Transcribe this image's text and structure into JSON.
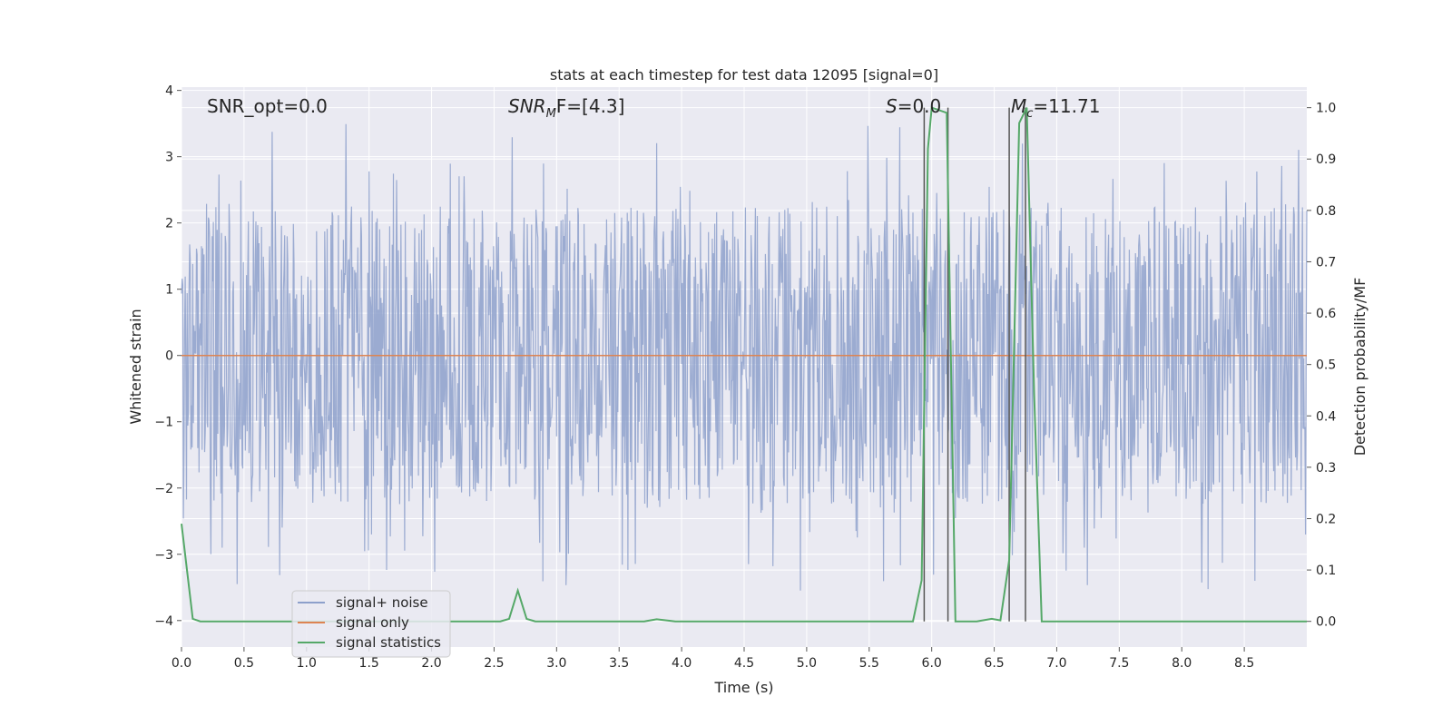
{
  "chart_data": {
    "type": "line",
    "title": "stats at each timestep for test data 12095 [signal=0]",
    "xlabel": "Time (s)",
    "ylabel": "Whitened strain",
    "ylabel_right": "Detection probability/MF",
    "xlim": [
      0,
      9
    ],
    "ylim": [
      -4.4,
      4.05
    ],
    "ylim_right": [
      -0.05,
      1.04
    ],
    "x_ticks": [
      "0.0",
      "0.5",
      "1.0",
      "1.5",
      "2.0",
      "2.5",
      "3.0",
      "3.5",
      "4.0",
      "4.5",
      "5.0",
      "5.5",
      "6.0",
      "6.5",
      "7.0",
      "7.5",
      "8.0",
      "8.5"
    ],
    "y_ticks": [
      "4",
      "3",
      "2",
      "1",
      "0",
      "−1",
      "−2",
      "−3",
      "−4"
    ],
    "y_ticks_right": [
      "1.0",
      "0.9",
      "0.8",
      "0.7",
      "0.6",
      "0.5",
      "0.4",
      "0.3",
      "0.2",
      "0.1",
      "0.0"
    ],
    "grid": true,
    "legend_position": "lower-left",
    "annotations": {
      "snr_opt": "SNR_opt=0.0",
      "snr_mf_sym": "SNR",
      "snr_mf_sub": "M",
      "snr_mf_tail": "F=[4.3]",
      "s_sym": "S",
      "s_tail": "=0.0",
      "mc_sym": "M",
      "mc_sub": "c",
      "mc_tail": "=11.71"
    },
    "series": [
      {
        "name": "signal+ noise",
        "color": "#8da0cb",
        "kind": "noise",
        "envelope_typical": 1.5,
        "envelope_peak": 3.6
      },
      {
        "name": "signal only",
        "color": "#dd8452",
        "kind": "flat",
        "value": 0
      },
      {
        "name": "signal statistics",
        "color": "#55a868",
        "axis": "right",
        "x": [
          0.0,
          0.09,
          0.15,
          2.55,
          2.62,
          2.69,
          2.76,
          2.83,
          3.7,
          3.8,
          3.95,
          5.85,
          5.92,
          5.97,
          6.0,
          6.12,
          6.19,
          6.28,
          6.36,
          6.48,
          6.55,
          6.62,
          6.7,
          6.76,
          6.82,
          6.88,
          9.0
        ],
        "values": [
          0.19,
          0.005,
          0.0,
          0.0,
          0.005,
          0.06,
          0.005,
          0.0,
          0.0,
          0.004,
          0.0,
          0.0,
          0.08,
          0.92,
          1.0,
          0.99,
          0.0,
          0.0,
          0.0,
          0.005,
          0.002,
          0.12,
          0.97,
          1.0,
          0.44,
          0.0,
          0.0
        ]
      }
    ],
    "vertical_lines": [
      5.94,
      6.13,
      6.62,
      6.75
    ]
  }
}
